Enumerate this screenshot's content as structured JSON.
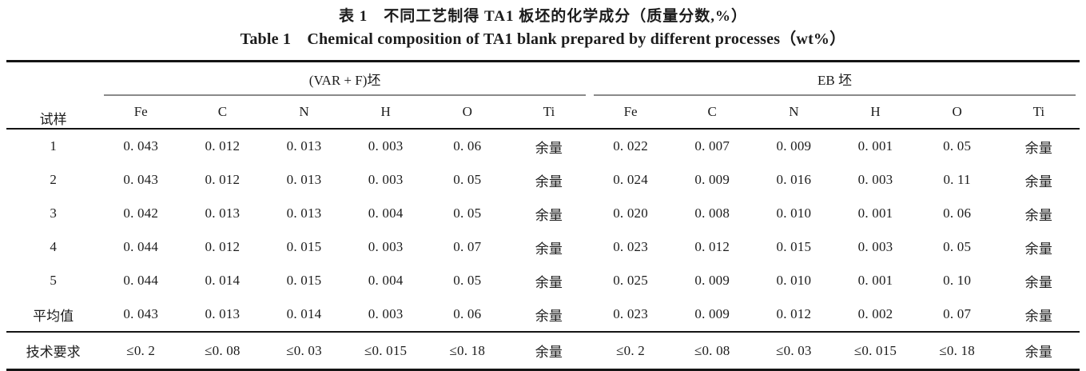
{
  "titles": {
    "zh": "表 1　不同工艺制得 TA1 板坯的化学成分（质量分数,%）",
    "en": "Table 1　Chemical composition of TA1 blank prepared by different processes（wt%）"
  },
  "table": {
    "sample_header": "试样",
    "groups": [
      {
        "label": "(VAR + F)坯"
      },
      {
        "label": "EB 坯"
      }
    ],
    "columns": [
      "Fe",
      "C",
      "N",
      "H",
      "O",
      "Ti",
      "Fe",
      "C",
      "N",
      "H",
      "O",
      "Ti"
    ],
    "rows": [
      {
        "label": "1",
        "cells": [
          "0. 043",
          "0. 012",
          "0. 013",
          "0. 003",
          "0. 06",
          "余量",
          "0. 022",
          "0. 007",
          "0. 009",
          "0. 001",
          "0. 05",
          "余量"
        ]
      },
      {
        "label": "2",
        "cells": [
          "0. 043",
          "0. 012",
          "0. 013",
          "0. 003",
          "0. 05",
          "余量",
          "0. 024",
          "0. 009",
          "0. 016",
          "0. 003",
          "0. 11",
          "余量"
        ]
      },
      {
        "label": "3",
        "cells": [
          "0. 042",
          "0. 013",
          "0. 013",
          "0. 004",
          "0. 05",
          "余量",
          "0. 020",
          "0. 008",
          "0. 010",
          "0. 001",
          "0. 06",
          "余量"
        ]
      },
      {
        "label": "4",
        "cells": [
          "0. 044",
          "0. 012",
          "0. 015",
          "0. 003",
          "0. 07",
          "余量",
          "0. 023",
          "0. 012",
          "0. 015",
          "0. 003",
          "0. 05",
          "余量"
        ]
      },
      {
        "label": "5",
        "cells": [
          "0. 044",
          "0. 014",
          "0. 015",
          "0. 004",
          "0. 05",
          "余量",
          "0. 025",
          "0. 009",
          "0. 010",
          "0. 001",
          "0. 10",
          "余量"
        ]
      },
      {
        "label": "平均值",
        "cells": [
          "0. 043",
          "0. 013",
          "0. 014",
          "0. 003",
          "0. 06",
          "余量",
          "0. 023",
          "0. 009",
          "0. 012",
          "0. 002",
          "0. 07",
          "余量"
        ]
      },
      {
        "label": "技术要求",
        "cells": [
          "≤0. 2",
          "≤0. 08",
          "≤0. 03",
          "≤0. 015",
          "≤0. 18",
          "余量",
          "≤0. 2",
          "≤0. 08",
          "≤0. 03",
          "≤0. 015",
          "≤0. 18",
          "余量"
        ]
      }
    ]
  }
}
